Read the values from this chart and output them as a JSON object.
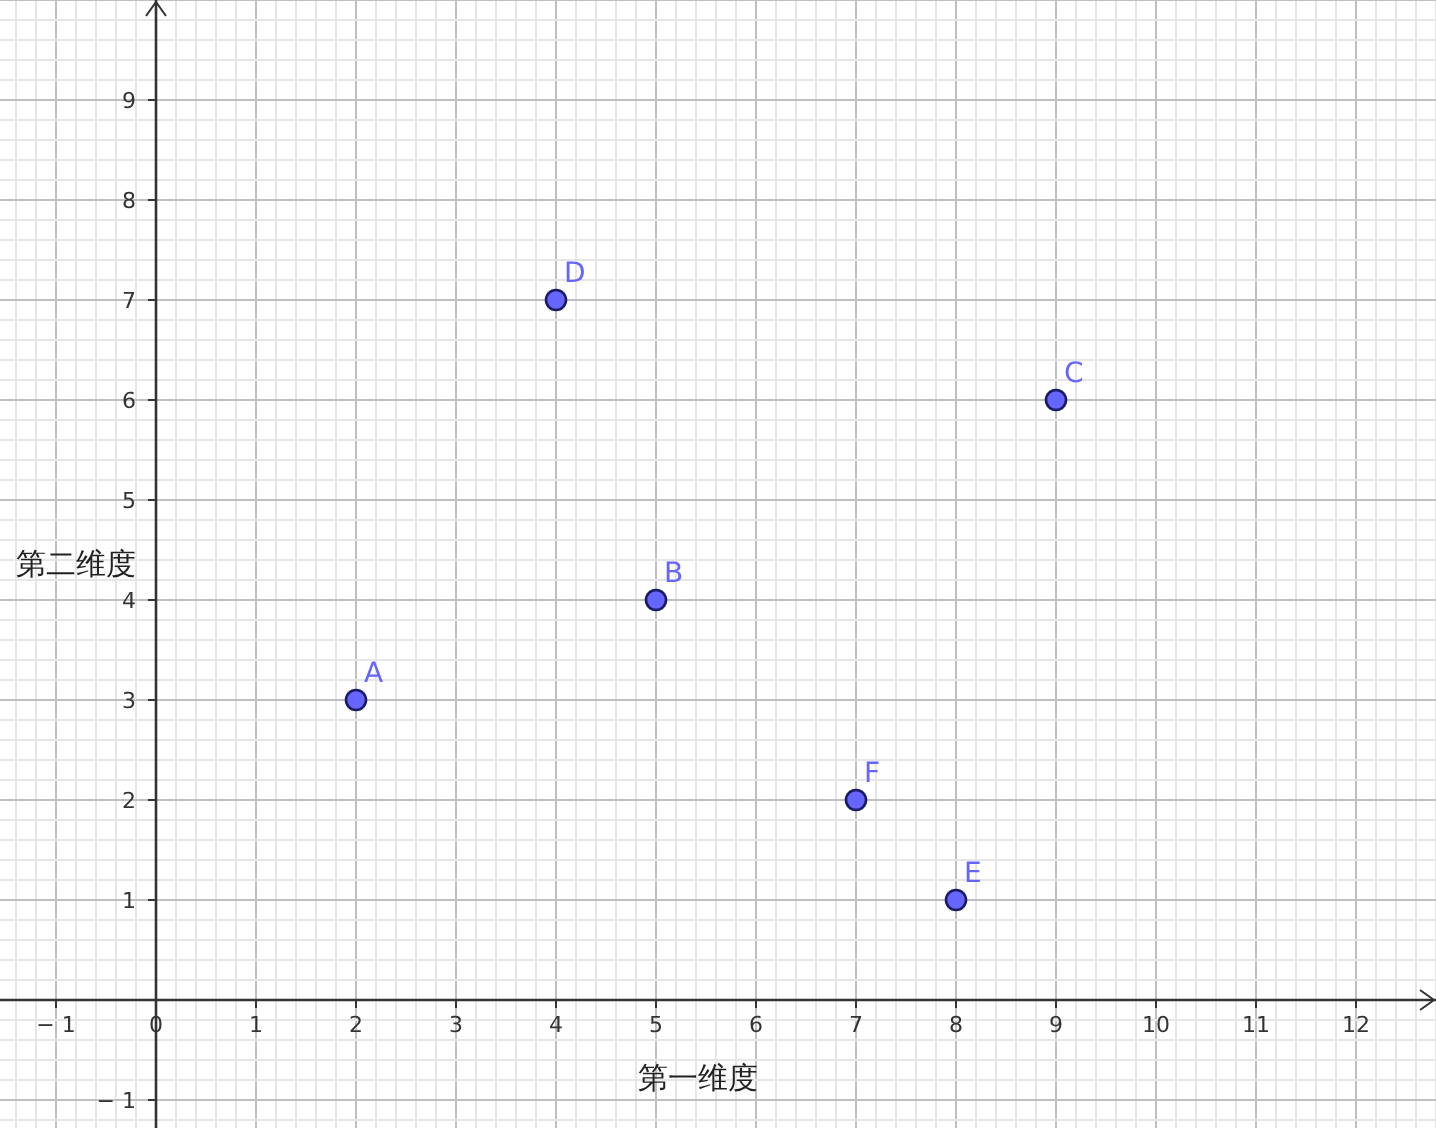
{
  "chart_data": {
    "type": "scatter",
    "xlabel": "第一维度",
    "ylabel": "第二维度",
    "x": [
      2,
      5,
      9,
      4,
      8,
      7
    ],
    "values": [
      3,
      4,
      6,
      7,
      1,
      2
    ],
    "color": "#6666ff",
    "marker": "circle",
    "xlim": [
      -1.56,
      12.8
    ],
    "ylim": [
      -1.28,
      10
    ],
    "xticks": [
      -1,
      0,
      1,
      2,
      3,
      4,
      5,
      6,
      7,
      8,
      9,
      10,
      11,
      12
    ],
    "yticks": [
      -1,
      1,
      2,
      3,
      4,
      5,
      6,
      7,
      8,
      9
    ],
    "grid": true,
    "annotations": [
      {
        "text": "A",
        "x": 2,
        "y": 3
      },
      {
        "text": "B",
        "x": 5,
        "y": 4
      },
      {
        "text": "C",
        "x": 9,
        "y": 6
      },
      {
        "text": "D",
        "x": 4,
        "y": 7
      },
      {
        "text": "E",
        "x": 8,
        "y": 1
      },
      {
        "text": "F",
        "x": 7,
        "y": 2
      }
    ]
  }
}
